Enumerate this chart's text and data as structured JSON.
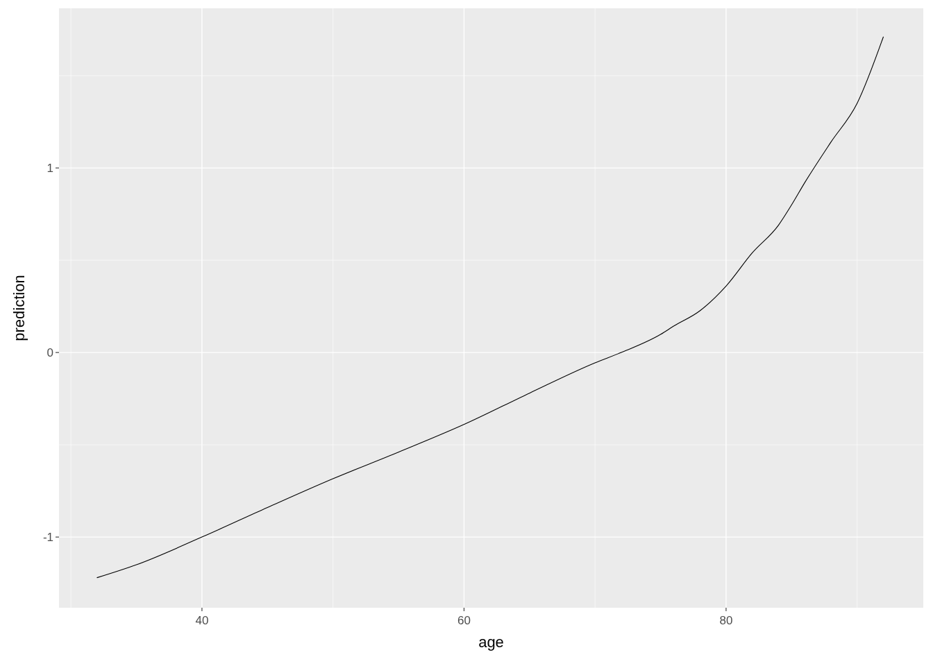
{
  "chart_data": {
    "type": "line",
    "xlabel": "age",
    "ylabel": "prediction",
    "x": [
      32,
      35,
      40,
      45,
      50,
      55,
      60,
      65,
      70,
      72,
      75,
      76,
      78,
      80,
      82,
      84,
      85,
      86,
      88,
      90,
      92
    ],
    "series": [
      {
        "color": "#000000",
        "values": [
          -1.22,
          -1.15,
          -1.0,
          -0.84,
          -0.684,
          -0.54,
          -0.39,
          -0.22,
          -0.056,
          0.0,
          0.098,
          0.143,
          0.226,
          0.36,
          0.54,
          0.69,
          0.8,
          0.92,
          1.14,
          1.35,
          1.71
        ]
      }
    ],
    "xlim": [
      29.09,
      95.05
    ],
    "ylim": [
      -1.383,
      1.865
    ],
    "xticks": [
      {
        "value": 30,
        "label": null
      },
      40,
      {
        "value": 50,
        "label": null
      },
      60,
      {
        "value": 70,
        "label": null
      },
      80,
      {
        "value": 90,
        "label": null
      }
    ],
    "yticks": [
      -1,
      {
        "value": -0.5,
        "label": null
      },
      0,
      {
        "value": 0.5,
        "label": null
      },
      1,
      {
        "value": 1.5,
        "label": null
      }
    ],
    "grid": true,
    "marker": "none",
    "line_style": "solid"
  }
}
